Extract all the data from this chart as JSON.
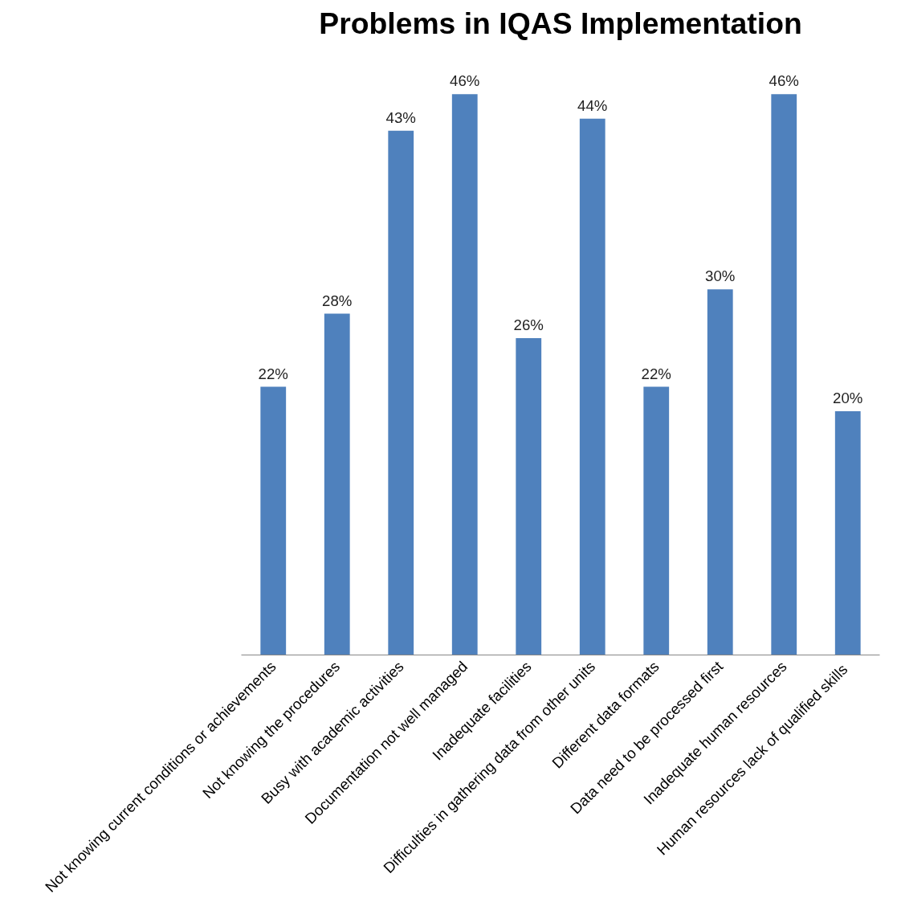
{
  "chart_data": {
    "type": "bar",
    "title": "Problems in IQAS Implementation",
    "categories": [
      "Not knowing current conditions or achievements",
      "Not knowing the procedures",
      "Busy with academic activities",
      "Documentation not well managed",
      "Inadequate facilities",
      "Difficulties in gathering data from other units",
      "Different data formats",
      "Data need to be processed first",
      "Inadequate human resources",
      "Human resources lack of  qualified skills"
    ],
    "values": [
      22,
      28,
      43,
      46,
      26,
      44,
      22,
      30,
      46,
      20
    ],
    "value_labels": [
      "22%",
      "28%",
      "43%",
      "46%",
      "26%",
      "44%",
      "22%",
      "30%",
      "46%",
      "20%"
    ],
    "color": "#4f81bd"
  }
}
